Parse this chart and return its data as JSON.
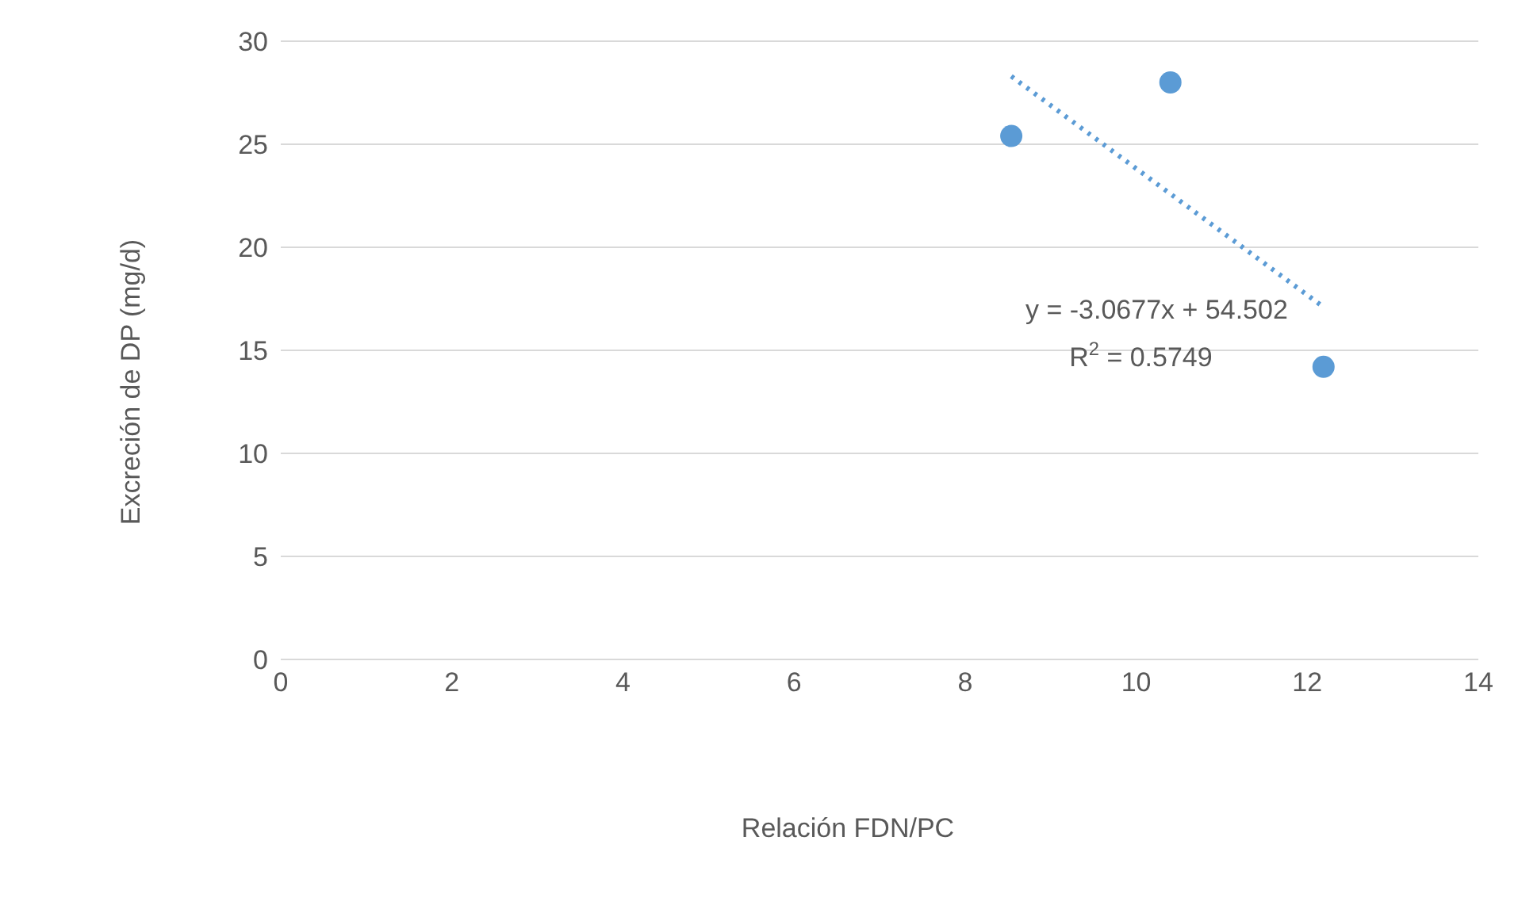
{
  "chart_data": {
    "type": "scatter",
    "xlabel": "Relación FDN/PC",
    "ylabel": "Excreción de DP (mg/d)",
    "xlim": [
      0,
      14
    ],
    "xticks": [
      0,
      2,
      4,
      6,
      8,
      10,
      12,
      14
    ],
    "ylim": [
      0,
      30
    ],
    "yticks": [
      0,
      5,
      10,
      15,
      20,
      25,
      30
    ],
    "grid": "y",
    "marker": "circle",
    "series": [
      {
        "color": "#5b9bd5",
        "x": [
          8.54,
          10.4,
          12.19
        ],
        "values": [
          25.4,
          28.0,
          14.2
        ]
      },
      {
        "type": "line",
        "color": "#5b9bd5",
        "line_style": "dotted",
        "marker": "none",
        "x": [
          8.54,
          12.19
        ],
        "values": [
          28.3,
          17.1
        ]
      }
    ],
    "annotations": [
      "y = -3.0677x + 54.502",
      "R$^{2}$ = 0.5749"
    ]
  }
}
